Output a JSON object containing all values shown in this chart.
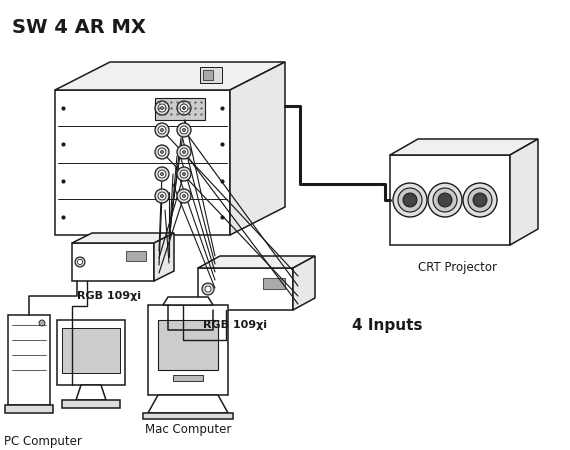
{
  "title": "SW 4 AR MX",
  "bg_color": "#ffffff",
  "line_color": "#1a1a1a",
  "label_pc": "PC Computer",
  "label_mac": "Mac Computer",
  "label_crt": "CRT Projector",
  "label_rgb1": "RGB 109χi",
  "label_rgb2": "RGB 109χi",
  "label_inputs": "4 Inputs",
  "title_fontsize": 14,
  "label_fontsize": 8.5,
  "inputs_fontsize": 11
}
